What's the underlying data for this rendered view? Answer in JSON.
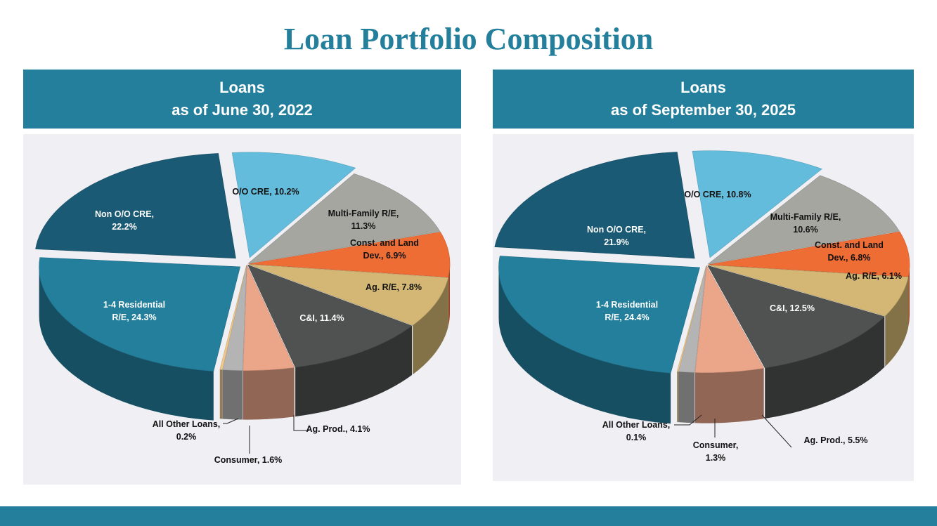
{
  "page": {
    "title": "Loan Portfolio Composition"
  },
  "colors": {
    "header_bg": "#237f9c",
    "panel_bg": "#efeff4",
    "title_color": "#237f9c"
  },
  "chart_data": [
    {
      "type": "pie",
      "title_line1": "Loans",
      "title_line2": "as of June 30, 2022",
      "slices": [
        {
          "name": "O/O CRE",
          "value": 10.2,
          "label_lines": [
            "O/O CRE, 10.2%"
          ],
          "color": "#63bcdc"
        },
        {
          "name": "Multi-Family R/E",
          "value": 11.3,
          "label_lines": [
            "Multi-Family R/E,",
            "11.3%"
          ],
          "color": "#a6a6a1"
        },
        {
          "name": "Const. and Land Dev.",
          "value": 6.9,
          "label_lines": [
            "Const. and Land",
            "Dev., 6.9%"
          ],
          "color": "#ee6d35"
        },
        {
          "name": "Ag. R/E",
          "value": 7.8,
          "label_lines": [
            "Ag. R/E, 7.8%"
          ],
          "color": "#d4b774"
        },
        {
          "name": "C&I",
          "value": 11.4,
          "label_lines": [
            "C&I, 11.4%"
          ],
          "color": "#4f5250",
          "label_color": "#ffffff"
        },
        {
          "name": "Ag. Prod.",
          "value": 4.1,
          "label_lines": [
            "Ag. Prod., 4.1%"
          ],
          "color": "#eba589"
        },
        {
          "name": "Consumer",
          "value": 1.6,
          "label_lines": [
            "Consumer, 1.6%"
          ],
          "color": "#b4b4b4"
        },
        {
          "name": "All Other Loans",
          "value": 0.2,
          "label_lines": [
            "All Other Loans,",
            "0.2%"
          ],
          "color": "#f0c88a"
        },
        {
          "name": "1-4 Residential R/E",
          "value": 24.3,
          "label_lines": [
            "1-4 Residential",
            "R/E, 24.3%"
          ],
          "color": "#237f9c",
          "label_color": "#ffffff"
        },
        {
          "name": "Non O/O CRE",
          "value": 22.2,
          "label_lines": [
            "Non O/O CRE,",
            "22.2%"
          ],
          "color": "#1b5a74",
          "label_color": "#ffffff"
        }
      ]
    },
    {
      "type": "pie",
      "title_line1": "Loans",
      "title_line2": "as of September 30, 2025",
      "slices": [
        {
          "name": "O/O CRE",
          "value": 10.8,
          "label_lines": [
            "O/O CRE, 10.8%"
          ],
          "color": "#63bcdc"
        },
        {
          "name": "Multi-Family R/E",
          "value": 10.6,
          "label_lines": [
            "Multi-Family R/E,",
            "10.6%"
          ],
          "color": "#a6a6a1"
        },
        {
          "name": "Const. and Land Dev.",
          "value": 6.8,
          "label_lines": [
            "Const. and Land",
            "Dev., 6.8%"
          ],
          "color": "#ee6d35"
        },
        {
          "name": "Ag. R/E",
          "value": 6.1,
          "label_lines": [
            "Ag. R/E, 6.1%"
          ],
          "color": "#d4b774"
        },
        {
          "name": "C&I",
          "value": 12.5,
          "label_lines": [
            "C&I, 12.5%"
          ],
          "color": "#4f5250",
          "label_color": "#ffffff"
        },
        {
          "name": "Ag. Prod.",
          "value": 5.5,
          "label_lines": [
            "Ag. Prod., 5.5%"
          ],
          "color": "#eba589"
        },
        {
          "name": "Consumer",
          "value": 1.3,
          "label_lines": [
            "Consumer,",
            "1.3%"
          ],
          "color": "#b4b4b4"
        },
        {
          "name": "All Other Loans",
          "value": 0.1,
          "label_lines": [
            "All Other Loans,",
            "0.1%"
          ],
          "color": "#f0c88a"
        },
        {
          "name": "1-4 Residential R/E",
          "value": 24.4,
          "label_lines": [
            "1-4 Residential",
            "R/E, 24.4%"
          ],
          "color": "#237f9c",
          "label_color": "#ffffff"
        },
        {
          "name": "Non O/O CRE",
          "value": 21.9,
          "label_lines": [
            "Non O/O CRE,",
            "21.9%"
          ],
          "color": "#1b5a74",
          "label_color": "#ffffff"
        }
      ]
    }
  ]
}
